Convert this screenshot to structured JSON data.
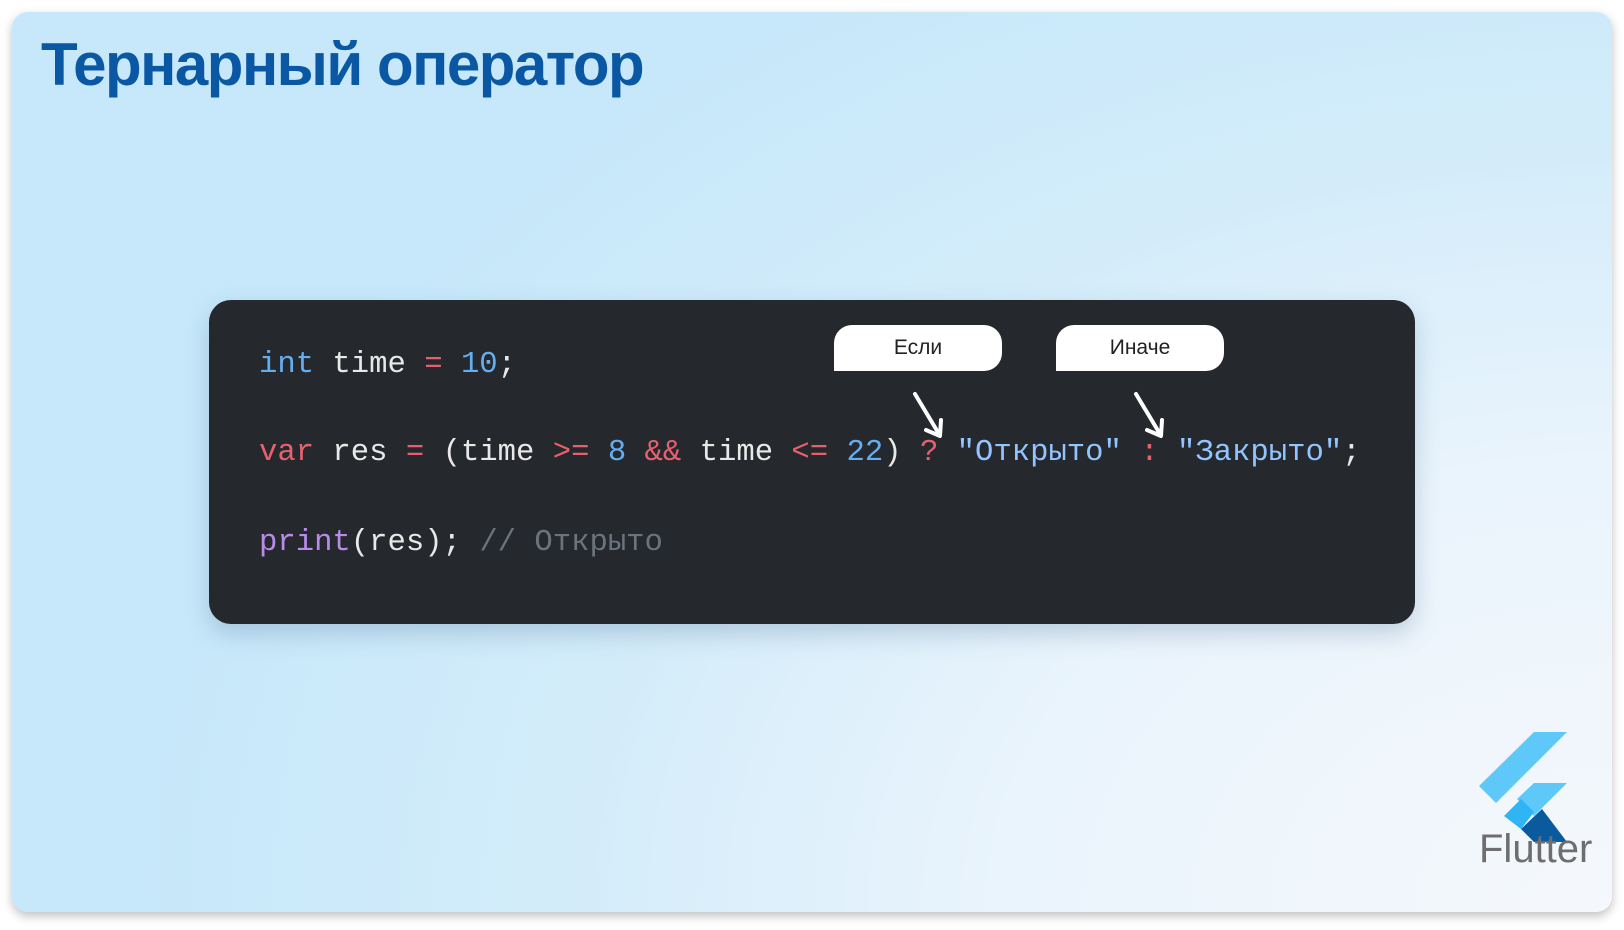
{
  "slide": {
    "title": "Тернарный оператор",
    "code": {
      "line1": {
        "kw": "int",
        "a": " time ",
        "op": "=",
        "b": " ",
        "num": "10",
        "c": ";"
      },
      "line2": {
        "kw": "var",
        "a": " res ",
        "op1": "=",
        "b": " (time ",
        "op2": ">=",
        "c": " ",
        "num1": "8",
        "d": " ",
        "op3": "&&",
        "e": " time ",
        "op4": "<=",
        "f": " ",
        "num2": "22",
        "g": ") ",
        "op5": "?",
        "h": " ",
        "str1": "\"Открыто\"",
        "i": " ",
        "op6": ":",
        "j": " ",
        "str2": "\"Закрыто\"",
        "k": ";"
      },
      "line3": {
        "fn": "print",
        "a": "(res); ",
        "comment": "// Открыто"
      }
    },
    "annotations": {
      "if_label": "Если",
      "else_label": "Иначе"
    },
    "logo": {
      "text": "Flutter",
      "colors": [
        "#5ec8f8",
        "#2fb5f3",
        "#0a5a9e"
      ]
    },
    "colors": {
      "title": "#0a57a4",
      "code_bg": "#25282c",
      "keyword": "#64aef0",
      "operator": "#e8606e",
      "string": "#92c4ff",
      "function": "#b88be8",
      "comment": "#6b737c"
    }
  }
}
